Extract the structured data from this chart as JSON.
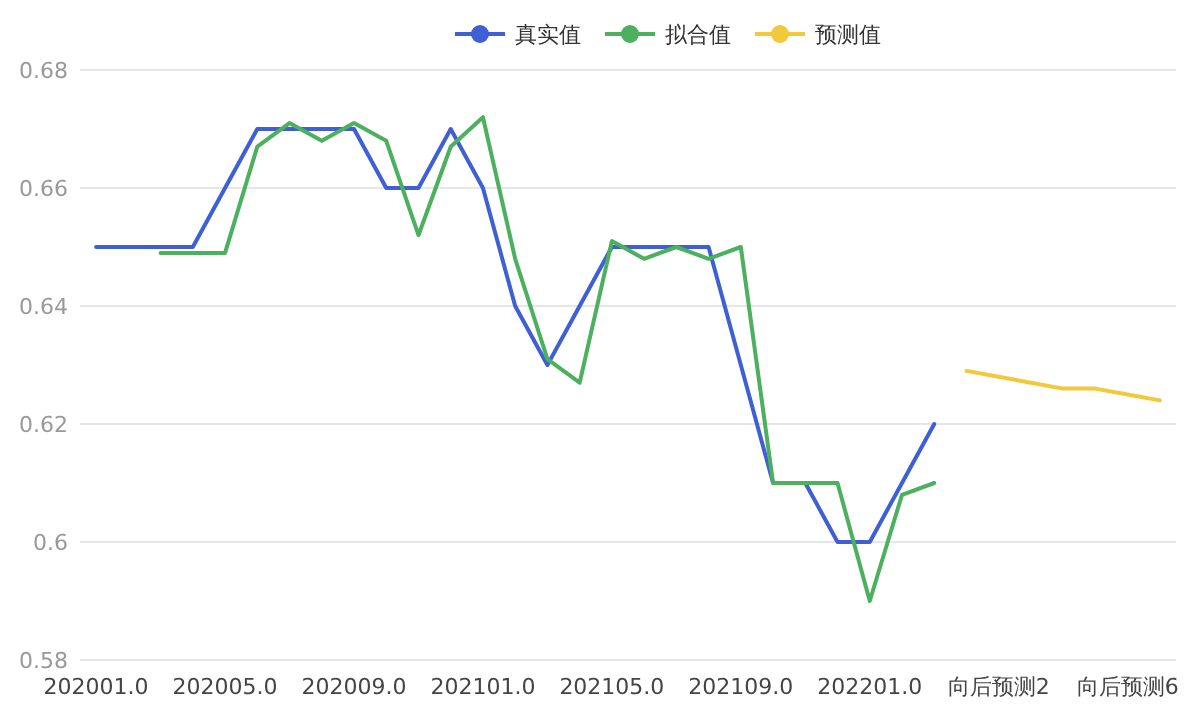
{
  "chart_data": {
    "type": "line",
    "categories": [
      "202001.0",
      null,
      null,
      null,
      "202005.0",
      null,
      null,
      null,
      "202009.0",
      null,
      null,
      null,
      "202101.0",
      null,
      null,
      null,
      "202105.0",
      null,
      null,
      null,
      "202109.0",
      null,
      null,
      null,
      "202201.0",
      null,
      null,
      null,
      "向后预测2",
      null,
      null,
      null,
      "向后预测6",
      null
    ],
    "series": [
      {
        "name": "真实值",
        "color": "#3f5fd4",
        "values": [
          0.65,
          0.65,
          0.65,
          0.65,
          0.66,
          0.67,
          0.67,
          0.67,
          0.67,
          0.66,
          0.66,
          0.67,
          0.66,
          0.64,
          0.63,
          0.64,
          0.65,
          0.65,
          0.65,
          0.65,
          0.63,
          0.61,
          0.61,
          0.6,
          0.6,
          0.61,
          0.62,
          null,
          null,
          null,
          null,
          null,
          null,
          null
        ]
      },
      {
        "name": "拟合值",
        "color": "#4cb05e",
        "values": [
          null,
          null,
          0.649,
          0.649,
          0.649,
          0.667,
          0.671,
          0.668,
          0.671,
          0.668,
          0.652,
          0.667,
          0.672,
          0.648,
          0.631,
          0.627,
          0.651,
          0.648,
          0.65,
          0.648,
          0.65,
          0.61,
          0.61,
          0.61,
          0.59,
          0.608,
          0.61,
          null,
          null,
          null,
          null,
          null,
          null,
          null
        ]
      },
      {
        "name": "预测值",
        "color": "#f2c93a",
        "values": [
          null,
          null,
          null,
          null,
          null,
          null,
          null,
          null,
          null,
          null,
          null,
          null,
          null,
          null,
          null,
          null,
          null,
          null,
          null,
          null,
          null,
          null,
          null,
          null,
          null,
          null,
          null,
          0.629,
          0.628,
          0.627,
          0.626,
          0.626,
          0.625,
          0.624
        ]
      }
    ],
    "ylim": [
      0.58,
      0.68
    ],
    "yticks": [
      0.58,
      0.6,
      0.62,
      0.64,
      0.66,
      0.68
    ],
    "grid": "y",
    "legend": "top",
    "marker": "none"
  }
}
